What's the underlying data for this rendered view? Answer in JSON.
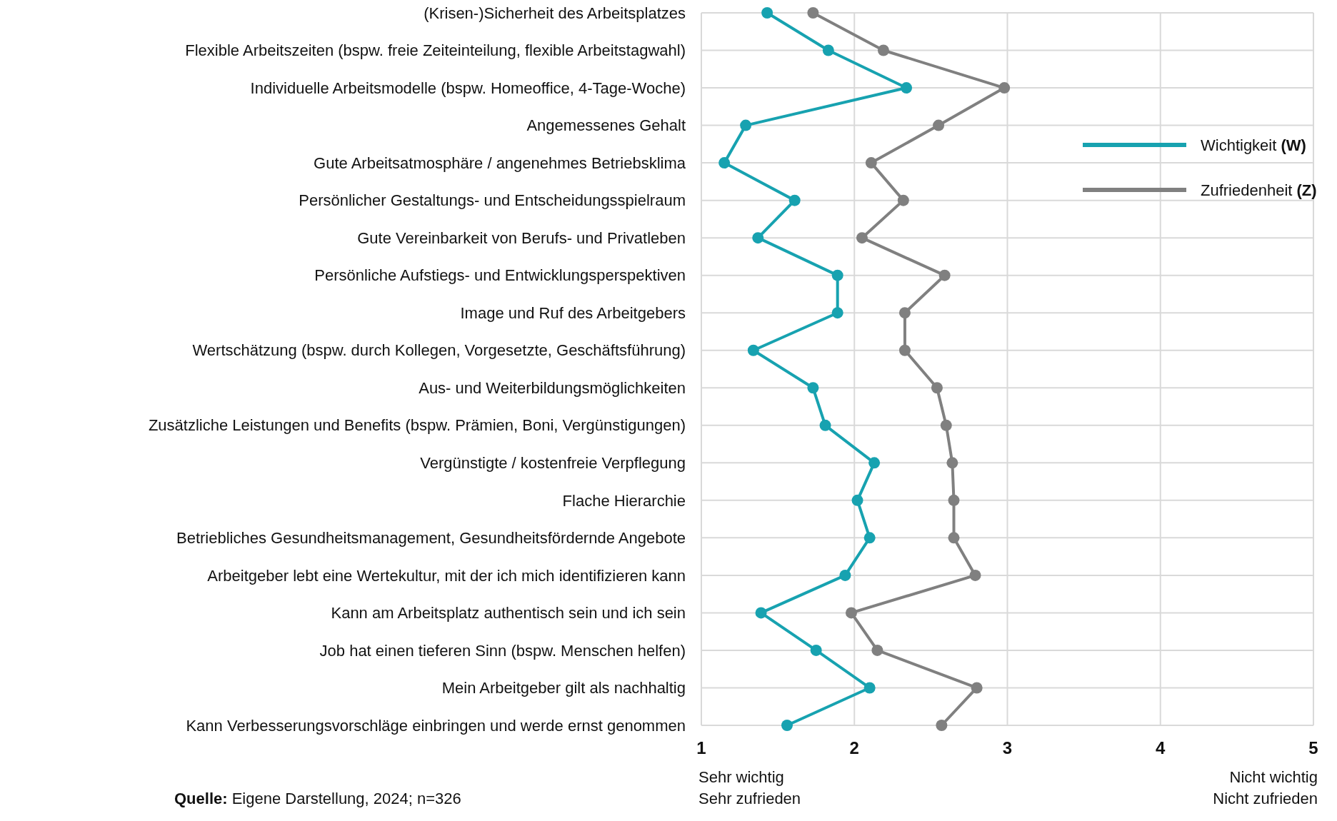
{
  "chart_data": {
    "type": "line",
    "orientation": "horizontal",
    "categories": [
      "(Krisen-)Sicherheit des Arbeitsplatzes",
      "Flexible Arbeitszeiten (bspw. freie Zeiteinteilung, flexible Arbeitstagwahl)",
      "Individuelle Arbeitsmodelle (bspw. Homeoffice, 4-Tage-Woche)",
      "Angemessenes Gehalt",
      "Gute Arbeitsatmosphäre / angenehmes Betriebsklima",
      "Persönlicher Gestaltungs- und Entscheidungsspielraum",
      "Gute Vereinbarkeit von Berufs- und Privatleben",
      "Persönliche Aufstiegs- und Entwicklungsperspektiven",
      "Image und Ruf des Arbeitgebers",
      "Wertschätzung (bspw. durch Kollegen, Vorgesetzte, Geschäftsführung)",
      "Aus- und Weiterbildungsmöglichkeiten",
      "Zusätzliche Leistungen und Benefits (bspw. Prämien, Boni, Vergünstigungen)",
      "Vergünstigte / kostenfreie Verpflegung",
      "Flache Hierarchie",
      "Betriebliches Gesundheitsmanagement, Gesundheitsfördernde Angebote",
      "Arbeitgeber lebt eine Wertekultur, mit der ich mich identifizieren kann",
      "Kann am Arbeitsplatz authentisch sein und ich sein",
      "Job hat einen tieferen Sinn (bspw. Menschen helfen)",
      "Mein Arbeitgeber gilt als nachhaltig",
      "Kann Verbesserungsvorschläge einbringen und werde ernst genommen"
    ],
    "series": [
      {
        "name": "Wichtigkeit (W)",
        "color": "#17a2b0",
        "values": [
          1.43,
          1.83,
          2.34,
          1.29,
          1.15,
          1.61,
          1.37,
          1.89,
          1.89,
          1.34,
          1.73,
          1.81,
          2.13,
          2.02,
          2.1,
          1.94,
          1.39,
          1.75,
          2.1,
          1.56
        ]
      },
      {
        "name": "Zufriedenheit (Z)",
        "color": "#808080",
        "values": [
          1.73,
          2.19,
          2.98,
          2.55,
          2.11,
          2.32,
          2.05,
          2.59,
          2.33,
          2.33,
          2.54,
          2.6,
          2.64,
          2.65,
          2.65,
          2.79,
          1.98,
          2.15,
          2.8,
          2.57
        ]
      }
    ],
    "xlim": [
      1,
      5
    ],
    "xticks": [
      1,
      2,
      3,
      4,
      5
    ],
    "grid": true,
    "legend": "top right",
    "marker": "circle",
    "line_style": "solid",
    "annotations": [
      "Sehr wichtig\nSehr zufrieden",
      "Nicht wichtig\nNicht zufrieden",
      "Quelle: Eigene Darstellung, 2024; n=326"
    ]
  }
}
